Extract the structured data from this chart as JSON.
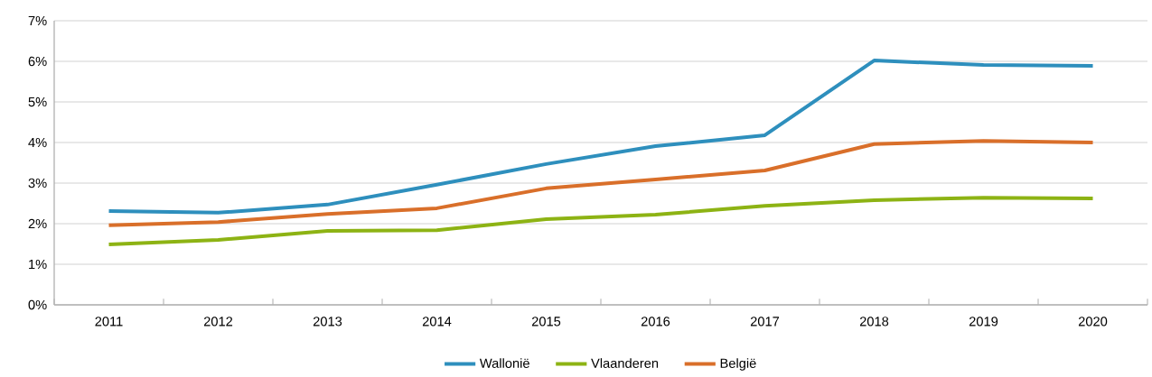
{
  "chart_data": {
    "type": "line",
    "categories": [
      "2011",
      "2012",
      "2013",
      "2014",
      "2015",
      "2016",
      "2017",
      "2018",
      "2019",
      "2020"
    ],
    "series": [
      {
        "name": "Wallonië",
        "color": "#2e8fbd",
        "values": [
          2.31,
          2.27,
          2.47,
          2.96,
          3.47,
          3.91,
          4.18,
          6.02,
          5.91,
          5.89
        ]
      },
      {
        "name": "Vlaanderen",
        "color": "#8db314",
        "values": [
          1.49,
          1.6,
          1.82,
          1.84,
          2.11,
          2.22,
          2.44,
          2.58,
          2.64,
          2.62
        ]
      },
      {
        "name": "België",
        "color": "#d96f2a",
        "values": [
          1.96,
          2.04,
          2.24,
          2.38,
          2.87,
          3.09,
          3.31,
          3.96,
          4.04,
          4.0
        ]
      }
    ],
    "ylim": [
      0,
      7
    ],
    "yticks": [
      {
        "value": 0,
        "label": "0%"
      },
      {
        "value": 1,
        "label": "1%"
      },
      {
        "value": 2,
        "label": "2%"
      },
      {
        "value": 3,
        "label": "3%"
      },
      {
        "value": 4,
        "label": "4%"
      },
      {
        "value": 5,
        "label": "5%"
      },
      {
        "value": 6,
        "label": "6%"
      },
      {
        "value": 7,
        "label": "7%"
      }
    ],
    "grid": "y",
    "legend": "bottom",
    "marker": "none",
    "line_style": "solid"
  }
}
